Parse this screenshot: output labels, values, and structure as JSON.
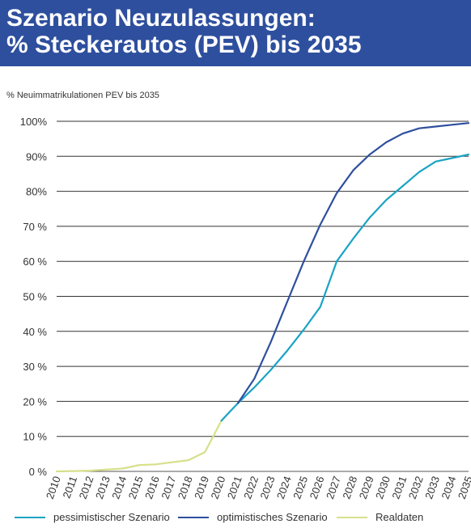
{
  "title_line1": "Szenario Neuzulassungen:",
  "title_line2": "% Steckerautos (PEV) bis 2035",
  "chart_data": {
    "type": "line",
    "ylabel": "% Neuimmatrikulationen PEV bis 2035",
    "ylim": [
      0,
      100
    ],
    "y_ticks": [
      {
        "value": 0,
        "label": "0 %"
      },
      {
        "value": 10,
        "label": "10 %"
      },
      {
        "value": 20,
        "label": "20 %"
      },
      {
        "value": 30,
        "label": "30 %"
      },
      {
        "value": 40,
        "label": "40 %"
      },
      {
        "value": 50,
        "label": "50 %"
      },
      {
        "value": 60,
        "label": "60 %"
      },
      {
        "value": 70,
        "label": "70 %"
      },
      {
        "value": 80,
        "label": "80%"
      },
      {
        "value": 90,
        "label": "90%"
      },
      {
        "value": 100,
        "label": "100%"
      }
    ],
    "categories": [
      "2010",
      "2011",
      "2012",
      "2013",
      "2014",
      "2015",
      "2016",
      "2017",
      "2018",
      "2019",
      "2020",
      "2021",
      "2022",
      "2023",
      "2024",
      "2025",
      "2026",
      "2027",
      "2028",
      "2029",
      "2030",
      "2031",
      "2032",
      "2033",
      "2034",
      "2035"
    ],
    "grid": true,
    "legend_position": "bottom",
    "series": [
      {
        "name": "pessimistischer Szenario",
        "color": "#1aa3c4",
        "x": [
          "2020",
          "2021",
          "2022",
          "2023",
          "2024",
          "2025",
          "2026",
          "2027",
          "2028",
          "2029",
          "2030",
          "2031",
          "2032",
          "2033",
          "2034",
          "2035"
        ],
        "values": [
          14.5,
          19.5,
          24,
          29,
          34.5,
          40.5,
          47,
          60,
          66.5,
          72.5,
          77.5,
          81.5,
          85.5,
          88.5,
          89.5,
          90.5
        ]
      },
      {
        "name": "optimistisches Szenario",
        "color": "#2e4f9e",
        "x": [
          "2021",
          "2022",
          "2023",
          "2024",
          "2025",
          "2026",
          "2027",
          "2028",
          "2029",
          "2030",
          "2031",
          "2032",
          "2033",
          "2034",
          "2035"
        ],
        "values": [
          19.5,
          26.5,
          37,
          48.5,
          60,
          70.5,
          79.5,
          86,
          90.5,
          94,
          96.5,
          98,
          98.5,
          99,
          99.5
        ]
      },
      {
        "name": "Realdaten",
        "color": "#d6e08a",
        "x": [
          "2010",
          "2011",
          "2012",
          "2013",
          "2014",
          "2015",
          "2016",
          "2017",
          "2018",
          "2019",
          "2020"
        ],
        "values": [
          0,
          0.1,
          0.2,
          0.5,
          0.8,
          1.8,
          2,
          2.6,
          3.2,
          5.5,
          14.5
        ]
      }
    ]
  }
}
